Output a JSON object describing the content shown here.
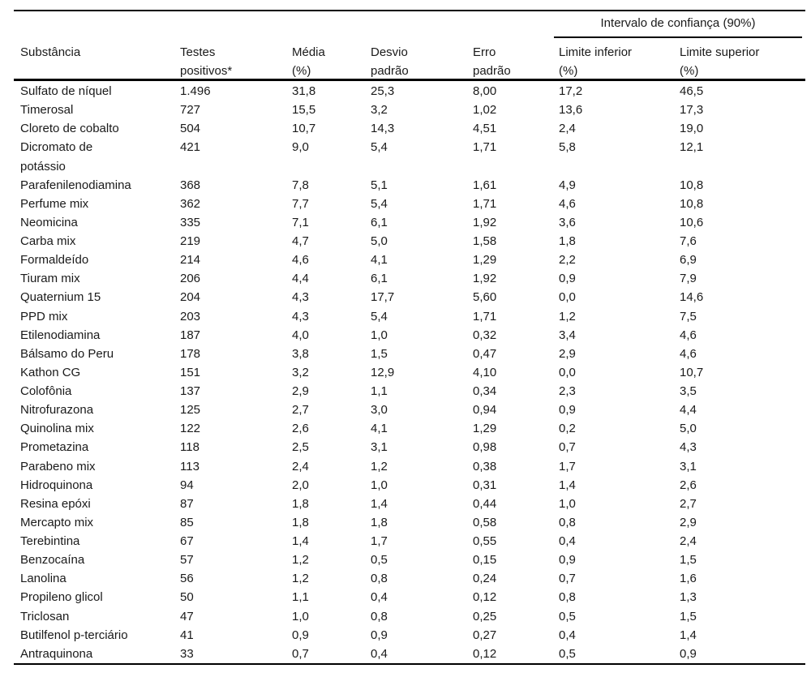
{
  "table": {
    "ci_group_header": "Intervalo de confiança (90%)",
    "columns": [
      "Substância",
      "Testes\npositivos*",
      "Média\n(%)",
      "Desvio\npadrão",
      "Erro\npadrão",
      "Limite inferior\n(%)",
      "Limite superior\n(%)"
    ],
    "rows": [
      [
        "Sulfato de níquel",
        "1.496",
        "31,8",
        "25,3",
        "8,00",
        "17,2",
        "46,5"
      ],
      [
        "Timerosal",
        "727",
        "15,5",
        "3,2",
        "1,02",
        "13,6",
        "17,3"
      ],
      [
        "Cloreto de cobalto",
        "504",
        "10,7",
        "14,3",
        "4,51",
        "2,4",
        "19,0"
      ],
      [
        "Dicromato de\npotássio",
        "421",
        "9,0",
        "5,4",
        "1,71",
        "5,8",
        "12,1"
      ],
      [
        "Parafenilenodiamina",
        "368",
        "7,8",
        "5,1",
        "1,61",
        "4,9",
        "10,8"
      ],
      [
        "Perfume mix",
        "362",
        "7,7",
        "5,4",
        "1,71",
        "4,6",
        "10,8"
      ],
      [
        "Neomicina",
        "335",
        "7,1",
        "6,1",
        "1,92",
        "3,6",
        "10,6"
      ],
      [
        "Carba mix",
        "219",
        "4,7",
        "5,0",
        "1,58",
        "1,8",
        "7,6"
      ],
      [
        "Formaldeído",
        "214",
        "4,6",
        "4,1",
        "1,29",
        "2,2",
        "6,9"
      ],
      [
        "Tiuram mix",
        "206",
        "4,4",
        "6,1",
        "1,92",
        "0,9",
        "7,9"
      ],
      [
        "Quaternium 15",
        "204",
        "4,3",
        "17,7",
        "5,60",
        "0,0",
        "14,6"
      ],
      [
        "PPD mix",
        "203",
        "4,3",
        "5,4",
        "1,71",
        "1,2",
        "7,5"
      ],
      [
        "Etilenodiamina",
        "187",
        "4,0",
        "1,0",
        "0,32",
        "3,4",
        "4,6"
      ],
      [
        "Bálsamo do Peru",
        "178",
        "3,8",
        "1,5",
        "0,47",
        "2,9",
        "4,6"
      ],
      [
        "Kathon CG",
        "151",
        "3,2",
        "12,9",
        "4,10",
        "0,0",
        "10,7"
      ],
      [
        "Colofônia",
        "137",
        "2,9",
        "1,1",
        "0,34",
        "2,3",
        "3,5"
      ],
      [
        "Nitrofurazona",
        "125",
        "2,7",
        "3,0",
        "0,94",
        "0,9",
        "4,4"
      ],
      [
        "Quinolina mix",
        "122",
        "2,6",
        "4,1",
        "1,29",
        "0,2",
        "5,0"
      ],
      [
        "Prometazina",
        "118",
        "2,5",
        "3,1",
        "0,98",
        "0,7",
        "4,3"
      ],
      [
        "Parabeno mix",
        "113",
        "2,4",
        "1,2",
        "0,38",
        "1,7",
        "3,1"
      ],
      [
        "Hidroquinona",
        "94",
        "2,0",
        "1,0",
        "0,31",
        "1,4",
        "2,6"
      ],
      [
        "Resina epóxi",
        "87",
        "1,8",
        "1,4",
        "0,44",
        "1,0",
        "2,7"
      ],
      [
        "Mercapto mix",
        "85",
        "1,8",
        "1,8",
        "0,58",
        "0,8",
        "2,9"
      ],
      [
        "Terebintina",
        "67",
        "1,4",
        "1,7",
        "0,55",
        "0,4",
        "2,4"
      ],
      [
        "Benzocaína",
        "57",
        "1,2",
        "0,5",
        "0,15",
        "0,9",
        "1,5"
      ],
      [
        "Lanolina",
        "56",
        "1,2",
        "0,8",
        "0,24",
        "0,7",
        "1,6"
      ],
      [
        "Propileno glicol",
        "50",
        "1,1",
        "0,4",
        "0,12",
        "0,8",
        "1,3"
      ],
      [
        "Triclosan",
        "47",
        "1,0",
        "0,8",
        "0,25",
        "0,5",
        "1,5"
      ],
      [
        "Butilfenol p-terciário",
        "41",
        "0,9",
        "0,9",
        "0,27",
        "0,4",
        "1,4"
      ],
      [
        "Antraquinona",
        "33",
        "0,7",
        "0,4",
        "0,12",
        "0,5",
        "0,9"
      ]
    ]
  }
}
